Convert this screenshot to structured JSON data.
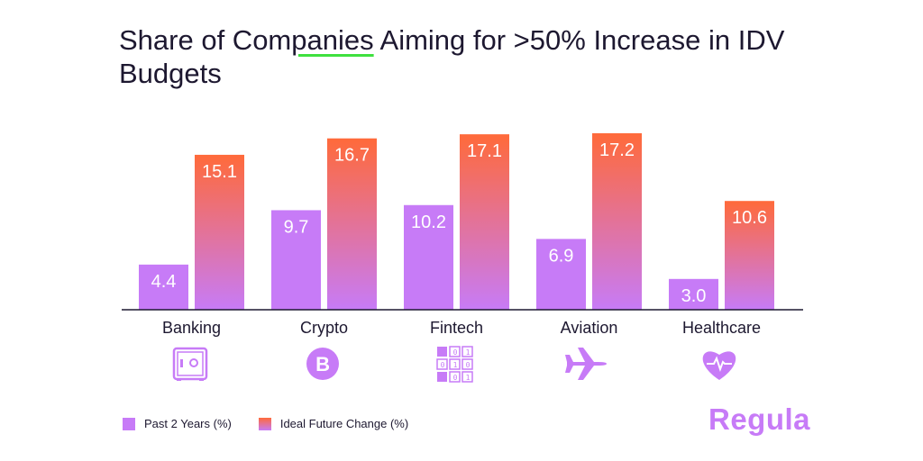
{
  "title": {
    "part1": "Share of Com",
    "part2": "panies",
    "part3": " Aiming for >50% Increase in IDV Budgets"
  },
  "chart_data": {
    "type": "bar",
    "title": "Share of Companies Aiming for >50% Increase in IDV Budgets",
    "categories": [
      "Banking",
      "Crypto",
      "Fintech",
      "Aviation",
      "Healthcare"
    ],
    "category_icons": [
      "safe-icon",
      "bitcoin-icon",
      "binary-code-icon",
      "airplane-icon",
      "heart-pulse-icon"
    ],
    "series": [
      {
        "name": "Past 2 Years (%)",
        "values": [
          4.4,
          9.7,
          10.2,
          6.9,
          3.0
        ],
        "labels": [
          "4.4",
          "9.7",
          "10.2",
          "6.9",
          "3.0"
        ]
      },
      {
        "name": "Ideal Future Change (%)",
        "values": [
          15.1,
          16.7,
          17.1,
          17.2,
          10.6
        ],
        "labels": [
          "15.1",
          "16.7",
          "17.1",
          "17.2",
          "10.6"
        ]
      }
    ],
    "ylim": [
      0,
      18
    ],
    "xlabel": "",
    "ylabel": "",
    "grid": false,
    "legend_position": "bottom-left"
  },
  "legend": {
    "past": "Past 2 Years (%)",
    "future": "Ideal Future Change (%)"
  },
  "brand": {
    "name": "Regula"
  },
  "colors": {
    "past": "#c77bf7",
    "future_top": "#ff6a3a",
    "future_bottom": "#c77bf7",
    "accent_underline": "#3fe03f",
    "text": "#1d1830"
  }
}
